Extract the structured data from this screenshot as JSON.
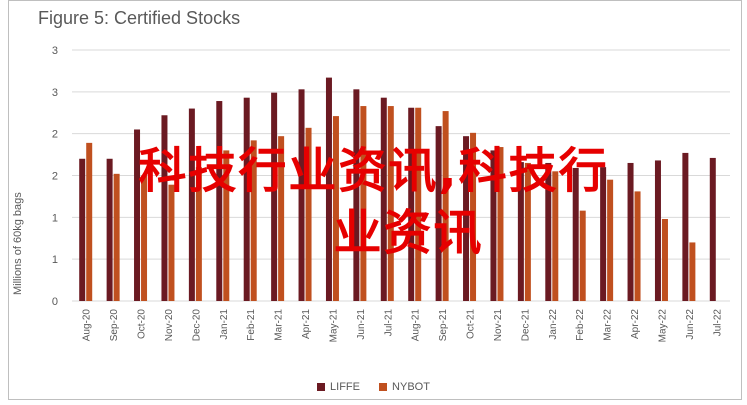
{
  "chart_data": {
    "type": "bar",
    "title": "Figure 5: Certified Stocks",
    "ylabel": "Millions of 60kg bags",
    "xlabel": "",
    "ylim": [
      0,
      3
    ],
    "y_ticks": [
      "0",
      "1",
      "1",
      "2",
      "2",
      "3",
      "3"
    ],
    "categories": [
      "Aug-20",
      "Sep-20",
      "Oct-20",
      "Nov-20",
      "Dec-20",
      "Jan-21",
      "Feb-21",
      "Mar-21",
      "Apr-21",
      "May-21",
      "Jun-21",
      "Jul-21",
      "Aug-21",
      "Sep-21",
      "Oct-21",
      "Nov-21",
      "Dec-21",
      "Jan-22",
      "Feb-22",
      "Mar-22",
      "Apr-22",
      "May-22",
      "Jun-22",
      "Jul-22"
    ],
    "series": [
      {
        "name": "LIFFE",
        "color": "#6b1a22",
        "values": [
          1.7,
          1.7,
          2.05,
          2.22,
          2.3,
          2.39,
          2.43,
          2.49,
          2.53,
          2.67,
          2.53,
          2.43,
          2.31,
          2.09,
          1.97,
          1.8,
          1.66,
          1.65,
          1.59,
          1.6,
          1.65,
          1.68,
          1.77,
          1.71
        ]
      },
      {
        "name": "NYBOT",
        "color": "#c0501f",
        "values": [
          1.89,
          1.52,
          1.5,
          1.39,
          1.6,
          1.8,
          1.92,
          1.97,
          2.07,
          2.21,
          2.33,
          2.33,
          2.31,
          2.27,
          2.01,
          1.84,
          1.65,
          1.55,
          1.08,
          1.45,
          1.31,
          0.98,
          0.7,
          null
        ]
      }
    ],
    "legend_position": "bottom",
    "grid": true
  },
  "overlay": {
    "line1": "科技行业资讯,科技行",
    "line2": "业资讯"
  },
  "colors": {
    "gridline": "#d9d9d9",
    "text": "#595959",
    "overlay": "#e60000"
  }
}
